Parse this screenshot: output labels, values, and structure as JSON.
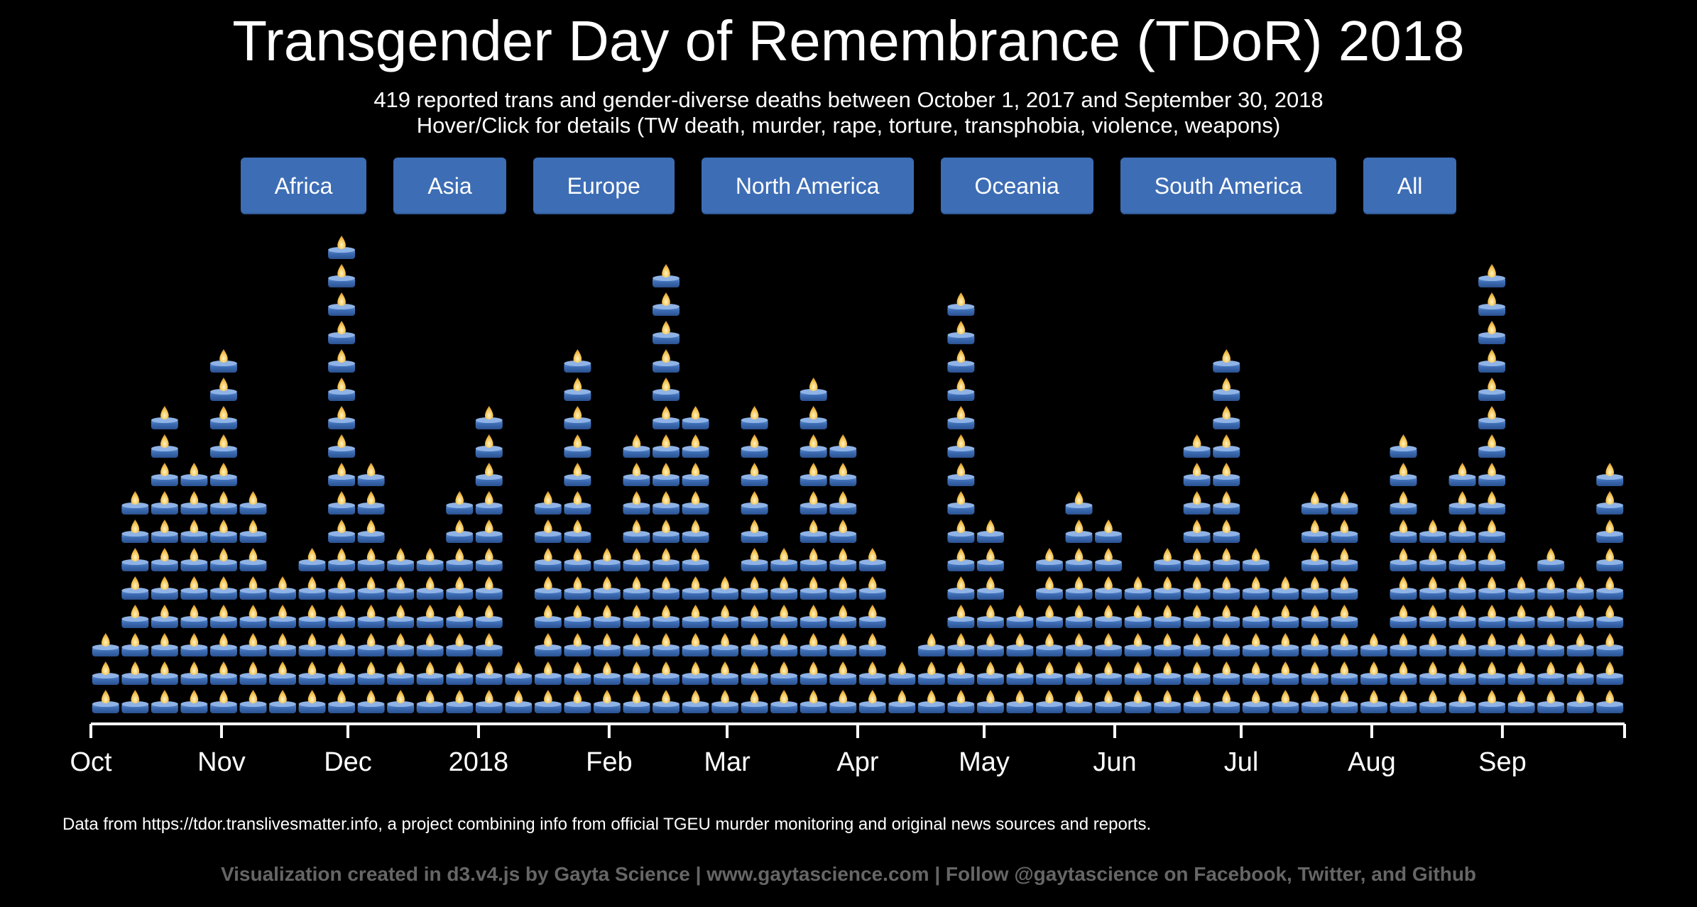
{
  "header": {
    "title": "Transgender Day of Remembrance (TDoR) 2018",
    "subtitle_line1": "419 reported trans and gender-diverse deaths between October 1, 2017 and September 30, 2018",
    "subtitle_line2": "Hover/Click for details (TW death, murder, rape, torture, transphobia, violence, weapons)"
  },
  "filters": [
    {
      "label": "Africa"
    },
    {
      "label": "Asia"
    },
    {
      "label": "Europe"
    },
    {
      "label": "North America"
    },
    {
      "label": "Oceania"
    },
    {
      "label": "South America"
    },
    {
      "label": "All"
    }
  ],
  "chart_data": {
    "type": "bar",
    "mark": "candle-icon",
    "x_label": "",
    "y_label": "",
    "grid": false,
    "x_range": [
      "2017-10-01",
      "2018-09-30"
    ],
    "ticks": [
      {
        "date": "2017-10-01",
        "label": "Oct"
      },
      {
        "date": "2017-11-01",
        "label": "Nov"
      },
      {
        "date": "2017-12-01",
        "label": "Dec"
      },
      {
        "date": "2018-01-01",
        "label": "2018"
      },
      {
        "date": "2018-02-01",
        "label": "Feb"
      },
      {
        "date": "2018-03-01",
        "label": "Mar"
      },
      {
        "date": "2018-04-01",
        "label": "Apr"
      },
      {
        "date": "2018-05-01",
        "label": "May"
      },
      {
        "date": "2018-06-01",
        "label": "Jun"
      },
      {
        "date": "2018-07-01",
        "label": "Jul"
      },
      {
        "date": "2018-08-01",
        "label": "Aug"
      },
      {
        "date": "2018-09-01",
        "label": "Sep"
      }
    ],
    "weeks": [
      {
        "week_start": "2017-10-01",
        "deaths": 3
      },
      {
        "week_start": "2017-10-08",
        "deaths": 8
      },
      {
        "week_start": "2017-10-15",
        "deaths": 11
      },
      {
        "week_start": "2017-10-22",
        "deaths": 9
      },
      {
        "week_start": "2017-10-29",
        "deaths": 13
      },
      {
        "week_start": "2017-11-05",
        "deaths": 8
      },
      {
        "week_start": "2017-11-12",
        "deaths": 5
      },
      {
        "week_start": "2017-11-19",
        "deaths": 6
      },
      {
        "week_start": "2017-11-26",
        "deaths": 17
      },
      {
        "week_start": "2017-12-03",
        "deaths": 9
      },
      {
        "week_start": "2017-12-10",
        "deaths": 6
      },
      {
        "week_start": "2017-12-17",
        "deaths": 6
      },
      {
        "week_start": "2017-12-24",
        "deaths": 8
      },
      {
        "week_start": "2017-12-31",
        "deaths": 11
      },
      {
        "week_start": "2018-01-07",
        "deaths": 2
      },
      {
        "week_start": "2018-01-14",
        "deaths": 8
      },
      {
        "week_start": "2018-01-21",
        "deaths": 13
      },
      {
        "week_start": "2018-01-28",
        "deaths": 6
      },
      {
        "week_start": "2018-02-04",
        "deaths": 10
      },
      {
        "week_start": "2018-02-11",
        "deaths": 16
      },
      {
        "week_start": "2018-02-18",
        "deaths": 11
      },
      {
        "week_start": "2018-02-25",
        "deaths": 5
      },
      {
        "week_start": "2018-03-04",
        "deaths": 11
      },
      {
        "week_start": "2018-03-11",
        "deaths": 6
      },
      {
        "week_start": "2018-03-18",
        "deaths": 12
      },
      {
        "week_start": "2018-03-25",
        "deaths": 10
      },
      {
        "week_start": "2018-04-01",
        "deaths": 6
      },
      {
        "week_start": "2018-04-08",
        "deaths": 2
      },
      {
        "week_start": "2018-04-15",
        "deaths": 3
      },
      {
        "week_start": "2018-04-22",
        "deaths": 15
      },
      {
        "week_start": "2018-04-29",
        "deaths": 7
      },
      {
        "week_start": "2018-05-06",
        "deaths": 4
      },
      {
        "week_start": "2018-05-13",
        "deaths": 6
      },
      {
        "week_start": "2018-05-20",
        "deaths": 8
      },
      {
        "week_start": "2018-05-27",
        "deaths": 7
      },
      {
        "week_start": "2018-06-03",
        "deaths": 5
      },
      {
        "week_start": "2018-06-10",
        "deaths": 6
      },
      {
        "week_start": "2018-06-17",
        "deaths": 10
      },
      {
        "week_start": "2018-06-24",
        "deaths": 13
      },
      {
        "week_start": "2018-07-01",
        "deaths": 6
      },
      {
        "week_start": "2018-07-08",
        "deaths": 5
      },
      {
        "week_start": "2018-07-15",
        "deaths": 8
      },
      {
        "week_start": "2018-07-22",
        "deaths": 8
      },
      {
        "week_start": "2018-07-29",
        "deaths": 3
      },
      {
        "week_start": "2018-08-05",
        "deaths": 10
      },
      {
        "week_start": "2018-08-12",
        "deaths": 7
      },
      {
        "week_start": "2018-08-19",
        "deaths": 9
      },
      {
        "week_start": "2018-08-26",
        "deaths": 16
      },
      {
        "week_start": "2018-09-02",
        "deaths": 5
      },
      {
        "week_start": "2018-09-09",
        "deaths": 6
      },
      {
        "week_start": "2018-09-16",
        "deaths": 5
      },
      {
        "week_start": "2018-09-23",
        "deaths": 9
      }
    ],
    "colors": {
      "candle_body": "#3d6db5",
      "flame": "#f2c14e",
      "axis": "#ffffff"
    }
  },
  "footer": {
    "source": "Data from https://tdor.translivesmatter.info, a project combining info from official TGEU murder monitoring and original news sources and reports.",
    "credits": "Visualization created in d3.v4.js by Gayta Science | www.gaytascience.com | Follow @gaytascience on Facebook, Twitter, and Github"
  }
}
